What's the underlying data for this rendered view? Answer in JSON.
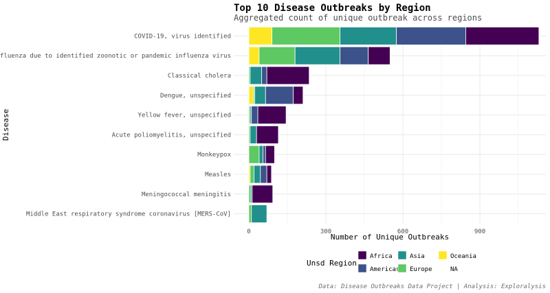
{
  "chart_data": {
    "type": "bar",
    "orientation": "horizontal",
    "stacked": true,
    "title": "Top 10 Disease Outbreaks by Region",
    "subtitle": "Aggregated count of unique outbreak across regions",
    "xlabel": "Number of Unique Outbreaks",
    "ylabel": "Disease",
    "caption": "Data: Disease Outbreaks Data Project | Analysis: Exploralysis",
    "xlim": [
      0,
      1200
    ],
    "xticks": [
      0,
      300,
      600,
      900
    ],
    "xtick_labels": [
      "0",
      "300",
      "600",
      "900"
    ],
    "grid": true,
    "legend_title": "Unsd Region",
    "legend_position": "bottom",
    "stack_order": [
      "Oceania",
      "Europe",
      "Asia",
      "Americas",
      "Africa"
    ],
    "legend_order": [
      "Africa",
      "Americas",
      "Asia",
      "Europe",
      "Oceania",
      "NA"
    ],
    "colors": {
      "Africa": "#440154",
      "Americas": "#3b528b",
      "Asia": "#21908c",
      "Europe": "#5ec962",
      "Oceania": "#fde725",
      "NA": "#ffffff"
    },
    "categories": [
      "COVID-19, virus identified",
      "Influenza due to identified zoonotic or pandemic influenza virus",
      "Classical cholera",
      "Dengue, unspecified",
      "Yellow fever, unspecified",
      "Acute poliomyelitis, unspecified",
      "Monkeypox",
      "Measles",
      "Meningococcal meningitis",
      "Middle East respiratory syndrome coronavirus [MERS-CoV]"
    ],
    "series": [
      {
        "name": "Oceania",
        "values": [
          90,
          40,
          0,
          18,
          0,
          0,
          0,
          5,
          0,
          0
        ]
      },
      {
        "name": "Europe",
        "values": [
          265,
          140,
          5,
          5,
          5,
          5,
          40,
          15,
          8,
          10
        ]
      },
      {
        "name": "Asia",
        "values": [
          220,
          175,
          45,
          42,
          5,
          25,
          15,
          25,
          5,
          60
        ]
      },
      {
        "name": "Americas",
        "values": [
          270,
          110,
          20,
          108,
          25,
          0,
          10,
          25,
          0,
          0
        ]
      },
      {
        "name": "Africa",
        "values": [
          285,
          85,
          165,
          38,
          110,
          85,
          35,
          18,
          80,
          0
        ]
      }
    ]
  }
}
